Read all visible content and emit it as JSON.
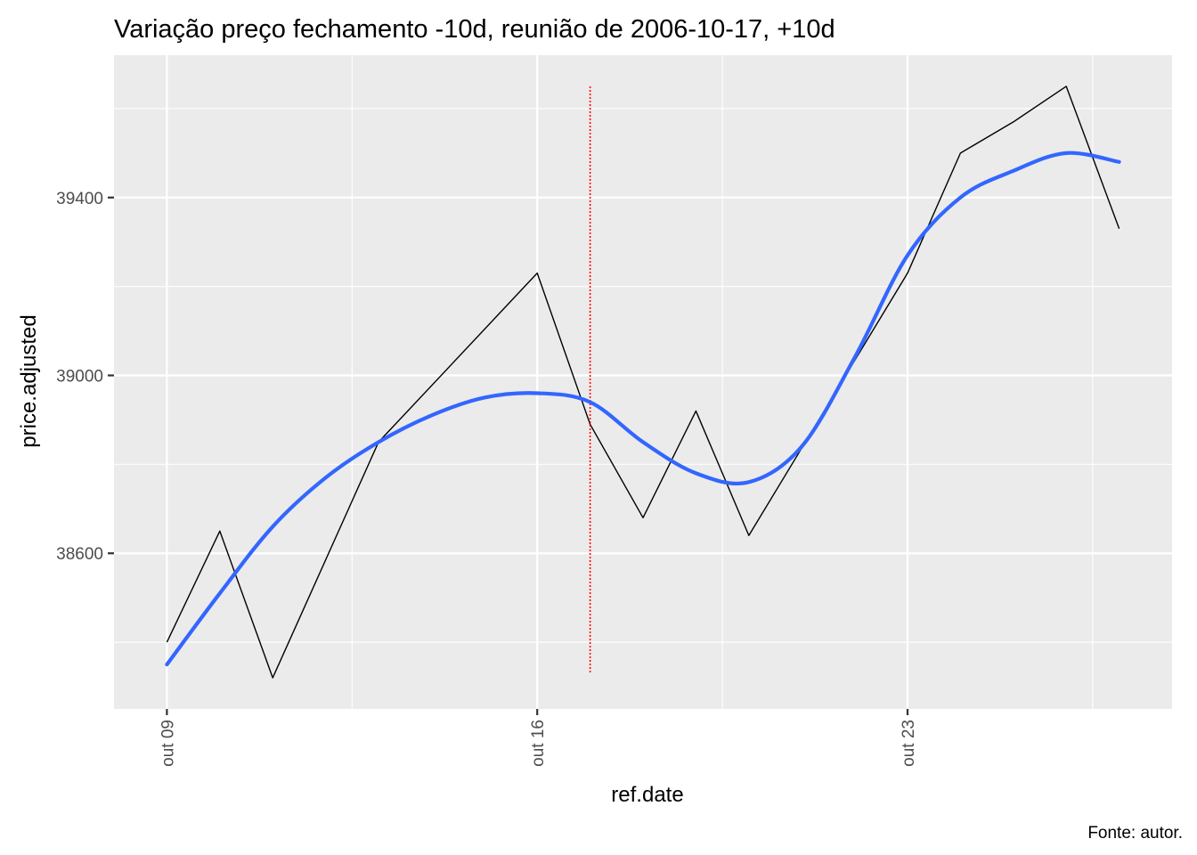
{
  "chart_data": {
    "type": "line",
    "title": "Variação preço fechamento -10d, reunião de 2006-10-17, +10d",
    "xlabel": "ref.date",
    "ylabel": "price.adjusted",
    "caption": "Fonte: autor.",
    "x_ticks": [
      {
        "date": "2006-10-09",
        "label": "out 09"
      },
      {
        "date": "2006-10-16",
        "label": "out 16"
      },
      {
        "date": "2006-10-23",
        "label": "out 23"
      }
    ],
    "y_ticks": [
      {
        "value": 38600,
        "label": "38600"
      },
      {
        "value": 39000,
        "label": "39000"
      },
      {
        "value": 39400,
        "label": "39400"
      }
    ],
    "xlim": [
      "2006-10-08",
      "2006-10-28"
    ],
    "ylim": [
      38250,
      39720
    ],
    "grid": true,
    "background": "#ebebeb",
    "series": [
      {
        "style": "line",
        "color": "#000000",
        "values": [
          {
            "x": "2006-10-09",
            "y": 38400
          },
          {
            "x": "2006-10-10",
            "y": 38650
          },
          {
            "x": "2006-10-11",
            "y": 38320
          },
          {
            "x": "2006-10-13",
            "y": 38850
          },
          {
            "x": "2006-10-16",
            "y": 39230
          },
          {
            "x": "2006-10-17",
            "y": 38890
          },
          {
            "x": "2006-10-18",
            "y": 38680
          },
          {
            "x": "2006-10-19",
            "y": 38920
          },
          {
            "x": "2006-10-20",
            "y": 38640
          },
          {
            "x": "2006-10-23",
            "y": 39230
          },
          {
            "x": "2006-10-24",
            "y": 39500
          },
          {
            "x": "2006-10-25",
            "y": 39570
          },
          {
            "x": "2006-10-26",
            "y": 39650
          },
          {
            "x": "2006-10-27",
            "y": 39330
          }
        ]
      },
      {
        "style": "smooth",
        "color": "#3366ff",
        "values": [
          {
            "x": "2006-10-09",
            "y": 38350
          },
          {
            "x": "2006-10-10",
            "y": 38510
          },
          {
            "x": "2006-10-11",
            "y": 38660
          },
          {
            "x": "2006-10-12",
            "y": 38770
          },
          {
            "x": "2006-10-13",
            "y": 38850
          },
          {
            "x": "2006-10-14",
            "y": 38910
          },
          {
            "x": "2006-10-15",
            "y": 38950
          },
          {
            "x": "2006-10-16",
            "y": 38960
          },
          {
            "x": "2006-10-17",
            "y": 38940
          },
          {
            "x": "2006-10-18",
            "y": 38850
          },
          {
            "x": "2006-10-19",
            "y": 38780
          },
          {
            "x": "2006-10-20",
            "y": 38760
          },
          {
            "x": "2006-10-21",
            "y": 38840
          },
          {
            "x": "2006-10-22",
            "y": 39040
          },
          {
            "x": "2006-10-23",
            "y": 39270
          },
          {
            "x": "2006-10-24",
            "y": 39400
          },
          {
            "x": "2006-10-25",
            "y": 39460
          },
          {
            "x": "2006-10-26",
            "y": 39500
          },
          {
            "x": "2006-10-27",
            "y": 39480
          }
        ]
      }
    ],
    "vline": {
      "x": "2006-10-17",
      "y_from": 38330,
      "y_to": 39650,
      "color": "#ff0000",
      "style": "dotted"
    }
  }
}
